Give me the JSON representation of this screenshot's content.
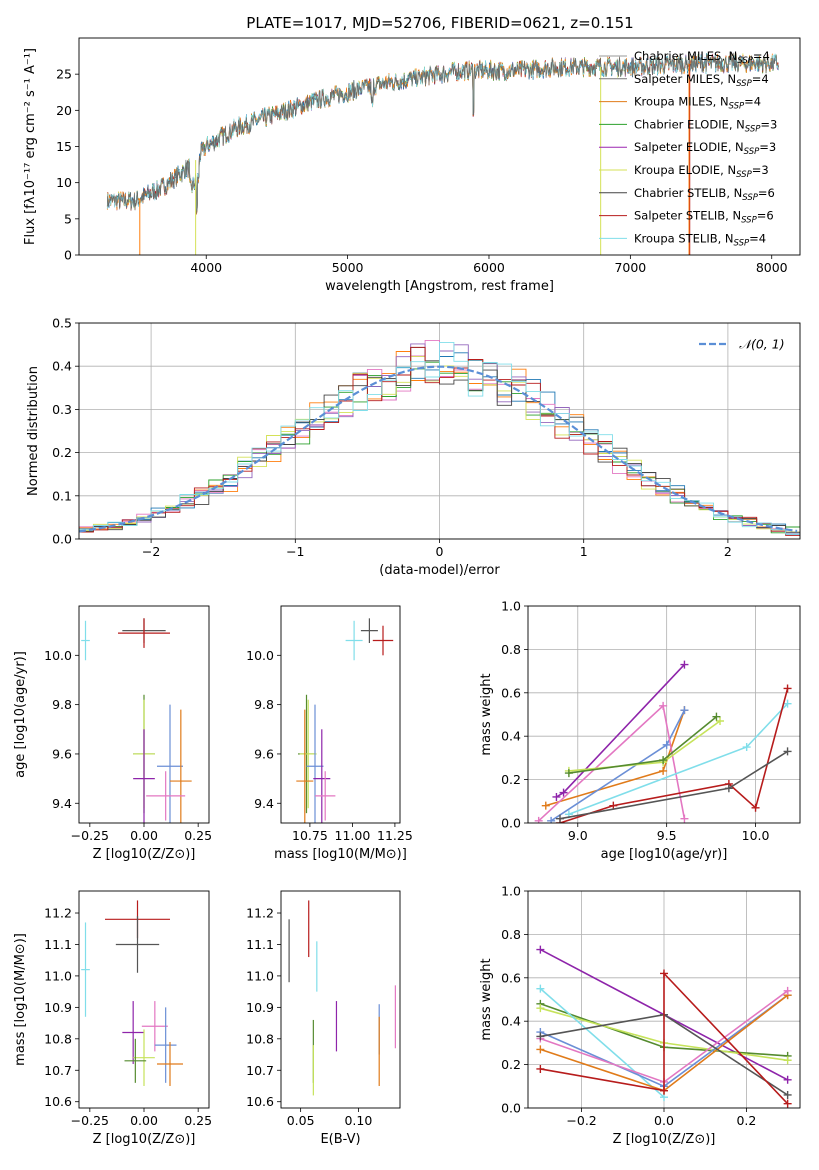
{
  "figure_title": "PLATE=1017, MJD=52706, FIBERID=0621, z=0.151",
  "colors": {
    "chabrier_miles": "#1f77b4",
    "salpeter_miles": "#ff7f0e",
    "kroupa_miles": "#e07b1a",
    "chabrier_elodie": "#2ca02c",
    "salpeter_elodie": "#9467bd",
    "kroupa_elodie": "#d4e157",
    "chabrier_stelib": "#444444",
    "salpeter_stelib": "#b71c1c",
    "kroupa_stelib": "#80deea"
  },
  "chart_data": [
    {
      "id": "spectrum",
      "type": "line",
      "title": "PLATE=1017, MJD=52706, FIBERID=0621, z=0.151",
      "xlabel": "wavelength [Angstrom, rest frame]",
      "ylabel": "Flux [fλ10⁻¹⁷ erg cm⁻² s⁻¹ A⁻¹]",
      "xlim": [
        3100,
        8200
      ],
      "ylim": [
        0,
        30
      ],
      "xticks": [
        "4000",
        "5000",
        "6000",
        "7000",
        "8000"
      ],
      "yticks": [
        "0",
        "5",
        "10",
        "15",
        "20",
        "25"
      ],
      "legend_position": "upper-right",
      "legend": [
        "Chabrier MILES, N_SSP=4",
        "Salpeter MILES, N_SSP=4",
        "Kroupa MILES, N_SSP=4",
        "Chabrier ELODIE, N_SSP=3",
        "Salpeter ELODIE, N_SSP=3",
        "Kroupa ELODIE, N_SSP=3",
        "Chabrier STELIB, N_SSP=6",
        "Salpeter STELIB, N_SSP=6",
        "Kroupa STELIB, N_SSP=4"
      ],
      "continuum_x": [
        3300,
        3500,
        3700,
        3900,
        4000,
        4200,
        4500,
        4800,
        5000,
        5200,
        5500,
        5800,
        6000,
        6200,
        6500,
        7000,
        7500,
        8000
      ],
      "continuum_y": [
        7.5,
        7.5,
        9.5,
        12.5,
        15,
        17.5,
        19.5,
        21.5,
        22.5,
        23.5,
        24.5,
        25.5,
        25.5,
        25.5,
        26,
        26,
        26.5,
        26.5
      ],
      "grid": false
    },
    {
      "id": "residuals",
      "type": "histogram",
      "xlabel": "(data-model)/error",
      "ylabel": "Normed distribution",
      "xlim": [
        -2.5,
        2.5
      ],
      "ylim": [
        0,
        0.5
      ],
      "xticks": [
        "−2",
        "−1",
        "0",
        "1",
        "2"
      ],
      "yticks": [
        "0.0",
        "0.1",
        "0.2",
        "0.3",
        "0.4",
        "0.5"
      ],
      "legend": [
        "𝒩(0, 1)"
      ],
      "legend_position": "upper-right",
      "bin_width": 0.1,
      "grid": true
    },
    {
      "id": "age-vs-Z",
      "type": "errorbar",
      "xlabel": "Z [log10(Z/Z⊙)]",
      "ylabel": "age  [log10(age/yr)]",
      "xlim": [
        -0.3,
        0.3
      ],
      "ylim": [
        9.32,
        10.2
      ],
      "xticks": [
        "−0.25",
        "0.00",
        "0.25"
      ],
      "yticks": [
        "9.4",
        "9.6",
        "9.8",
        "10.0"
      ],
      "points": [
        {
          "x": 0.0,
          "y": 10.1,
          "xerr": 0.1,
          "yerr": 0.05,
          "model": "chabrier_stelib"
        },
        {
          "x": 0.0,
          "y": 10.09,
          "xerr": 0.12,
          "yerr": 0.06,
          "model": "salpeter_stelib"
        },
        {
          "x": -0.27,
          "y": 10.06,
          "xerr": 0.02,
          "yerr": 0.08,
          "model": "kroupa_stelib"
        },
        {
          "x": 0.0,
          "y": 9.6,
          "xerr": 0.05,
          "yerr": 0.24,
          "model": "chabrier_elodie"
        },
        {
          "x": 0.0,
          "y": 9.6,
          "xerr": 0.05,
          "yerr": 0.22,
          "model": "kroupa_elodie"
        },
        {
          "x": 0.12,
          "y": 9.55,
          "xerr": 0.06,
          "yerr": 0.25,
          "model": "chabrier_miles"
        },
        {
          "x": 0.17,
          "y": 9.49,
          "xerr": 0.05,
          "yerr": 0.29,
          "model": "salpeter_miles"
        },
        {
          "x": 0.0,
          "y": 9.5,
          "xerr": 0.05,
          "yerr": 0.2,
          "model": "salpeter_elodie"
        },
        {
          "x": 0.1,
          "y": 9.43,
          "xerr": 0.09,
          "yerr": 0.1,
          "model": "kroupa_miles"
        }
      ]
    },
    {
      "id": "age-vs-mass",
      "type": "errorbar",
      "xlabel": "mass [log10(M/M⊙)]",
      "ylabel": "",
      "xlim": [
        10.58,
        11.28
      ],
      "ylim": [
        9.32,
        10.2
      ],
      "xticks": [
        "10.75",
        "11.00",
        "11.25"
      ],
      "yticks": [
        "9.4",
        "9.6",
        "9.8",
        "10.0"
      ],
      "points": [
        {
          "x": 11.1,
          "y": 10.1,
          "xerr": 0.05,
          "yerr": 0.05,
          "model": "chabrier_stelib"
        },
        {
          "x": 11.18,
          "y": 10.06,
          "xerr": 0.06,
          "yerr": 0.06,
          "model": "salpeter_stelib"
        },
        {
          "x": 11.01,
          "y": 10.06,
          "xerr": 0.05,
          "yerr": 0.08,
          "model": "kroupa_stelib"
        },
        {
          "x": 10.73,
          "y": 9.6,
          "xerr": 0.05,
          "yerr": 0.24,
          "model": "chabrier_elodie"
        },
        {
          "x": 10.74,
          "y": 9.6,
          "xerr": 0.05,
          "yerr": 0.22,
          "model": "kroupa_elodie"
        },
        {
          "x": 10.78,
          "y": 9.55,
          "xerr": 0.05,
          "yerr": 0.25,
          "model": "chabrier_miles"
        },
        {
          "x": 10.72,
          "y": 9.49,
          "xerr": 0.05,
          "yerr": 0.29,
          "model": "salpeter_miles"
        },
        {
          "x": 10.82,
          "y": 9.5,
          "xerr": 0.05,
          "yerr": 0.2,
          "model": "salpeter_elodie"
        },
        {
          "x": 10.84,
          "y": 9.43,
          "xerr": 0.06,
          "yerr": 0.1,
          "model": "kroupa_miles"
        }
      ]
    },
    {
      "id": "mass-weight-vs-age",
      "type": "line",
      "xlabel": "age  [log10(age/yr)]",
      "ylabel": "mass weight",
      "xlim": [
        8.72,
        10.25
      ],
      "ylim": [
        0,
        1
      ],
      "xticks": [
        "9.0",
        "9.5",
        "10.0"
      ],
      "yticks": [
        "0.0",
        "0.2",
        "0.4",
        "0.6",
        "0.8",
        "1.0"
      ],
      "grid": true,
      "series": [
        {
          "model": "salpeter_elodie",
          "x": [
            8.88,
            8.92,
            9.6
          ],
          "y": [
            0.12,
            0.14,
            0.73
          ]
        },
        {
          "model": "salpeter_miles",
          "x": [
            8.82,
            9.48,
            9.6
          ],
          "y": [
            0.08,
            0.24,
            0.52
          ]
        },
        {
          "model": "chabrier_miles",
          "x": [
            8.85,
            9.5,
            9.6
          ],
          "y": [
            0.01,
            0.36,
            0.52
          ]
        },
        {
          "model": "kroupa_miles",
          "x": [
            8.78,
            9.48,
            9.6
          ],
          "y": [
            0.01,
            0.54,
            0.02
          ]
        },
        {
          "model": "kroupa_elodie",
          "x": [
            8.95,
            9.48,
            9.8
          ],
          "y": [
            0.24,
            0.28,
            0.47
          ]
        },
        {
          "model": "chabrier_elodie",
          "x": [
            8.95,
            9.48,
            9.78
          ],
          "y": [
            0.23,
            0.29,
            0.49
          ]
        },
        {
          "model": "kroupa_stelib",
          "x": [
            8.95,
            9.95,
            10.18
          ],
          "y": [
            0.04,
            0.35,
            0.55
          ]
        },
        {
          "model": "salpeter_stelib",
          "x": [
            8.9,
            9.2,
            9.85,
            10.0,
            10.18
          ],
          "y": [
            0.0,
            0.08,
            0.18,
            0.07,
            0.62
          ]
        },
        {
          "model": "chabrier_stelib",
          "x": [
            8.9,
            9.85,
            10.18
          ],
          "y": [
            0.02,
            0.16,
            0.33
          ]
        }
      ]
    },
    {
      "id": "mass-vs-Z",
      "type": "errorbar",
      "xlabel": "Z [log10(Z/Z⊙)]",
      "ylabel": "mass [log10(M/M⊙)]",
      "xlim": [
        -0.3,
        0.3
      ],
      "ylim": [
        10.58,
        11.27
      ],
      "xticks": [
        "−0.25",
        "0.00",
        "0.25"
      ],
      "yticks": [
        "10.6",
        "10.7",
        "10.8",
        "10.9",
        "11.0",
        "11.1",
        "11.2"
      ],
      "points": [
        {
          "x": -0.03,
          "y": 11.18,
          "xerr": 0.15,
          "yerr": 0.06,
          "model": "salpeter_stelib"
        },
        {
          "x": -0.03,
          "y": 11.1,
          "xerr": 0.1,
          "yerr": 0.09,
          "model": "chabrier_stelib"
        },
        {
          "x": -0.27,
          "y": 11.02,
          "xerr": 0.02,
          "yerr": 0.15,
          "model": "kroupa_stelib"
        },
        {
          "x": 0.05,
          "y": 10.84,
          "xerr": 0.06,
          "yerr": 0.08,
          "model": "kroupa_miles"
        },
        {
          "x": -0.05,
          "y": 10.82,
          "xerr": 0.05,
          "yerr": 0.1,
          "model": "salpeter_elodie"
        },
        {
          "x": 0.1,
          "y": 10.78,
          "xerr": 0.05,
          "yerr": 0.12,
          "model": "chabrier_miles"
        },
        {
          "x": 0.0,
          "y": 10.74,
          "xerr": 0.05,
          "yerr": 0.09,
          "model": "kroupa_elodie"
        },
        {
          "x": -0.04,
          "y": 10.73,
          "xerr": 0.05,
          "yerr": 0.07,
          "model": "chabrier_elodie"
        },
        {
          "x": 0.12,
          "y": 10.72,
          "xerr": 0.06,
          "yerr": 0.07,
          "model": "salpeter_miles"
        }
      ]
    },
    {
      "id": "mass-vs-ebv",
      "type": "errorbar",
      "xlabel": "E(B-V)",
      "ylabel": "",
      "xlim": [
        0.033,
        0.136
      ],
      "ylim": [
        10.58,
        11.27
      ],
      "xticks": [
        "0.05",
        "0.10"
      ],
      "yticks": [
        "10.6",
        "10.7",
        "10.8",
        "10.9",
        "11.0",
        "11.1",
        "11.2"
      ],
      "points": [
        {
          "x": 0.04,
          "y": 11.08,
          "yerr": 0.1,
          "model": "chabrier_stelib"
        },
        {
          "x": 0.057,
          "y": 11.15,
          "yerr": 0.09,
          "model": "salpeter_stelib"
        },
        {
          "x": 0.064,
          "y": 11.03,
          "yerr": 0.08,
          "model": "kroupa_stelib"
        },
        {
          "x": 0.061,
          "y": 10.76,
          "yerr": 0.1,
          "model": "chabrier_elodie"
        },
        {
          "x": 0.061,
          "y": 10.7,
          "yerr": 0.08,
          "model": "kroupa_elodie"
        },
        {
          "x": 0.081,
          "y": 10.84,
          "yerr": 0.08,
          "model": "salpeter_elodie"
        },
        {
          "x": 0.118,
          "y": 10.83,
          "yerr": 0.08,
          "model": "chabrier_miles"
        },
        {
          "x": 0.118,
          "y": 10.76,
          "yerr": 0.11,
          "model": "salpeter_miles"
        },
        {
          "x": 0.132,
          "y": 10.87,
          "yerr": 0.1,
          "model": "kroupa_miles"
        }
      ]
    },
    {
      "id": "mass-weight-vs-Z",
      "type": "line",
      "xlabel": "Z [log10(Z/Z⊙)]",
      "ylabel": "mass weight",
      "xlim": [
        -0.33,
        0.33
      ],
      "ylim": [
        0,
        1
      ],
      "xticks": [
        "−0.2",
        "0.0",
        "0.2"
      ],
      "yticks": [
        "0.0",
        "0.2",
        "0.4",
        "0.6",
        "0.8",
        "1.0"
      ],
      "grid": true,
      "series": [
        {
          "model": "salpeter_elodie",
          "x": [
            -0.3,
            0.3
          ],
          "y": [
            0.73,
            0.13
          ]
        },
        {
          "model": "chabrier_elodie",
          "x": [
            -0.3,
            0.0,
            0.3
          ],
          "y": [
            0.48,
            0.28,
            0.24
          ]
        },
        {
          "model": "kroupa_elodie",
          "x": [
            -0.3,
            0.0,
            0.3
          ],
          "y": [
            0.46,
            0.3,
            0.22
          ]
        },
        {
          "model": "kroupa_stelib",
          "x": [
            -0.3,
            0.0
          ],
          "y": [
            0.55,
            0.05
          ]
        },
        {
          "model": "chabrier_miles",
          "x": [
            -0.3,
            0.0,
            0.3
          ],
          "y": [
            0.35,
            0.1,
            0.52
          ]
        },
        {
          "model": "salpeter_miles",
          "x": [
            -0.3,
            0.0,
            0.3
          ],
          "y": [
            0.27,
            0.08,
            0.52
          ]
        },
        {
          "model": "kroupa_miles",
          "x": [
            -0.3,
            0.0,
            0.3
          ],
          "y": [
            0.32,
            0.12,
            0.54
          ]
        },
        {
          "model": "chabrier_stelib",
          "x": [
            -0.3,
            0.0,
            0.3
          ],
          "y": [
            0.33,
            0.43,
            0.06
          ]
        },
        {
          "model": "salpeter_stelib",
          "x": [
            -0.3,
            0.0,
            0.0,
            0.3
          ],
          "y": [
            0.18,
            0.08,
            0.62,
            0.02
          ]
        }
      ]
    }
  ]
}
